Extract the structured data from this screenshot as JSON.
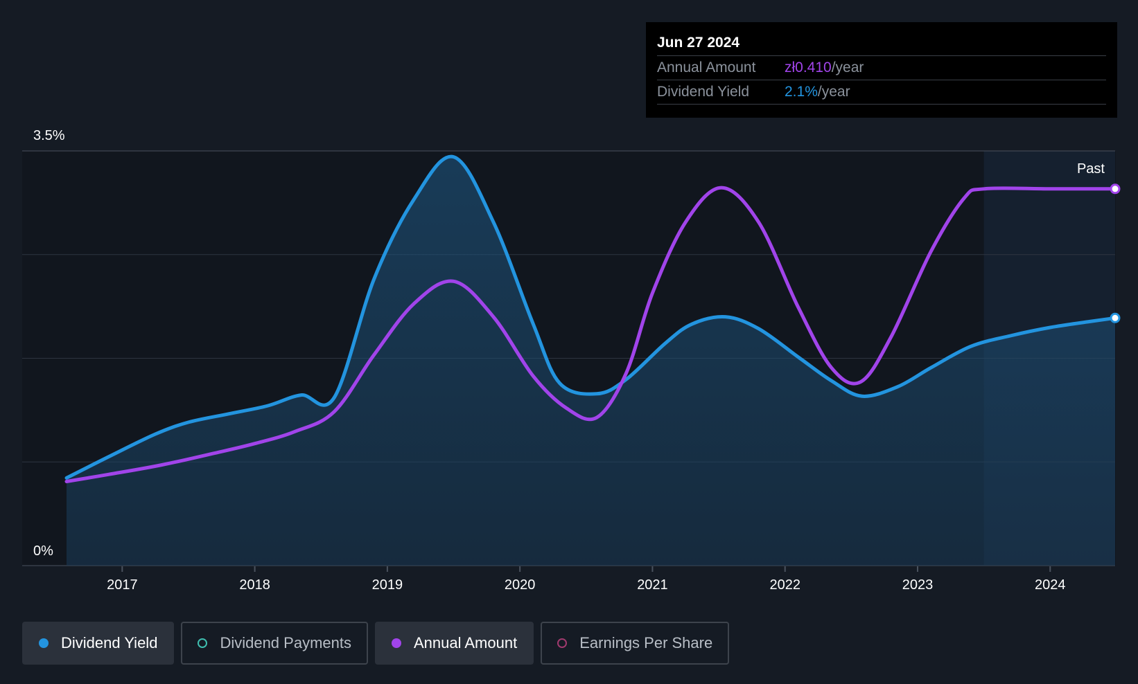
{
  "tooltip": {
    "date": "Jun 27 2024",
    "rows": [
      {
        "label": "Annual Amount",
        "value": "zł0.410",
        "unit": "/year"
      },
      {
        "label": "Dividend Yield",
        "value": "2.1%",
        "unit": "/year"
      }
    ]
  },
  "past_label": "Past",
  "legend": [
    {
      "label": "Dividend Yield",
      "active": true
    },
    {
      "label": "Dividend Payments",
      "active": false
    },
    {
      "label": "Annual Amount",
      "active": true
    },
    {
      "label": "Earnings Per Share",
      "active": false
    }
  ],
  "colors": {
    "background": "#151b24",
    "dividend_yield": "#2394df",
    "dividend_payments": "#3fbfb0",
    "annual_amount": "#a144ea",
    "earnings_per_share": "#a03a6e",
    "grid": "#2e3540"
  },
  "chart_data": {
    "type": "line",
    "y_tick_labels": [
      "3.5%",
      "0%"
    ],
    "ylim": [
      0,
      3.5
    ],
    "xlim": [
      2016.58,
      2024.49
    ],
    "x_ticks": [
      2017,
      2018,
      2019,
      2020,
      2021,
      2022,
      2023,
      2024
    ],
    "x_tick_labels": [
      "2017",
      "2018",
      "2019",
      "2020",
      "2021",
      "2022",
      "2023",
      "2024"
    ],
    "past_region_start": 2023.5,
    "grid": true,
    "series": [
      {
        "name": "Dividend Yield",
        "color": "#2394df",
        "filled": true,
        "points": [
          [
            2016.58,
            0.74
          ],
          [
            2016.9,
            0.92
          ],
          [
            2017.25,
            1.11
          ],
          [
            2017.5,
            1.21
          ],
          [
            2017.8,
            1.28
          ],
          [
            2018.1,
            1.35
          ],
          [
            2018.35,
            1.44
          ],
          [
            2018.6,
            1.42
          ],
          [
            2018.9,
            2.42
          ],
          [
            2019.2,
            3.09
          ],
          [
            2019.5,
            3.45
          ],
          [
            2019.8,
            2.9
          ],
          [
            2020.1,
            2.04
          ],
          [
            2020.3,
            1.54
          ],
          [
            2020.58,
            1.45
          ],
          [
            2020.8,
            1.57
          ],
          [
            2021.1,
            1.88
          ],
          [
            2021.3,
            2.04
          ],
          [
            2021.55,
            2.1
          ],
          [
            2021.8,
            2.0
          ],
          [
            2022.1,
            1.76
          ],
          [
            2022.35,
            1.56
          ],
          [
            2022.58,
            1.43
          ],
          [
            2022.85,
            1.51
          ],
          [
            2023.1,
            1.67
          ],
          [
            2023.4,
            1.85
          ],
          [
            2023.7,
            1.94
          ],
          [
            2024.0,
            2.01
          ],
          [
            2024.3,
            2.06
          ],
          [
            2024.49,
            2.09
          ]
        ]
      },
      {
        "name": "Annual Amount",
        "color": "#a144ea",
        "filled": false,
        "points": [
          [
            2016.58,
            0.71
          ],
          [
            2016.9,
            0.77
          ],
          [
            2017.3,
            0.85
          ],
          [
            2017.7,
            0.95
          ],
          [
            2018.0,
            1.03
          ],
          [
            2018.3,
            1.13
          ],
          [
            2018.6,
            1.3
          ],
          [
            2018.9,
            1.78
          ],
          [
            2019.2,
            2.21
          ],
          [
            2019.5,
            2.4
          ],
          [
            2019.8,
            2.1
          ],
          [
            2020.1,
            1.6
          ],
          [
            2020.35,
            1.33
          ],
          [
            2020.58,
            1.25
          ],
          [
            2020.8,
            1.62
          ],
          [
            2021.0,
            2.3
          ],
          [
            2021.25,
            2.9
          ],
          [
            2021.52,
            3.19
          ],
          [
            2021.8,
            2.9
          ],
          [
            2022.1,
            2.18
          ],
          [
            2022.35,
            1.67
          ],
          [
            2022.57,
            1.55
          ],
          [
            2022.8,
            1.93
          ],
          [
            2023.1,
            2.65
          ],
          [
            2023.35,
            3.1
          ],
          [
            2023.5,
            3.18
          ],
          [
            2024.0,
            3.18
          ],
          [
            2024.49,
            3.18
          ]
        ]
      }
    ]
  }
}
